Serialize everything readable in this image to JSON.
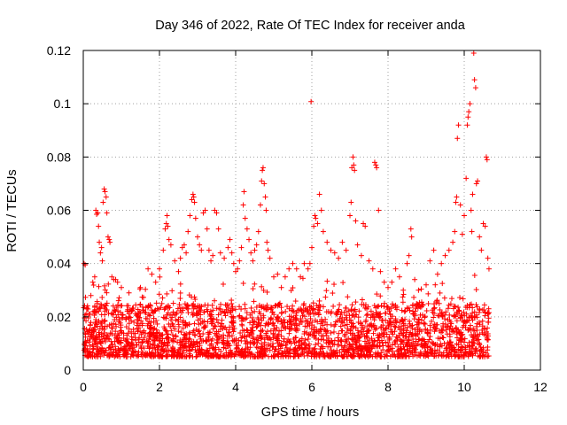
{
  "chart_data": {
    "type": "scatter",
    "title": "Day 346 of 2022, Rate Of TEC Index for receiver anda",
    "xlabel": "GPS time / hours",
    "ylabel": "ROTI / TECUs",
    "xlim": [
      0,
      12
    ],
    "ylim": [
      0,
      0.12
    ],
    "xticks": [
      "0",
      "2",
      "4",
      "6",
      "8",
      "10",
      "12"
    ],
    "yticks": [
      "0",
      "0.02",
      "0.04",
      "0.06",
      "0.08",
      "0.1",
      "0.12"
    ],
    "grid": true,
    "marker": "+",
    "marker_color": "#ff0000",
    "x_data_extent": [
      0,
      10.65
    ],
    "baseline_range": [
      0.005,
      0.025
    ],
    "points": [
      [
        0.02,
        0.04
      ],
      [
        0.05,
        0.0395
      ],
      [
        0.1,
        0.023
      ],
      [
        0.15,
        0.021
      ],
      [
        0.2,
        0.028
      ],
      [
        0.25,
        0.033
      ],
      [
        0.3,
        0.035
      ],
      [
        0.33,
        0.06
      ],
      [
        0.35,
        0.0585
      ],
      [
        0.38,
        0.059
      ],
      [
        0.4,
        0.054
      ],
      [
        0.42,
        0.048
      ],
      [
        0.45,
        0.044
      ],
      [
        0.48,
        0.046
      ],
      [
        0.5,
        0.041
      ],
      [
        0.52,
        0.063
      ],
      [
        0.55,
        0.068
      ],
      [
        0.57,
        0.067
      ],
      [
        0.6,
        0.065
      ],
      [
        0.62,
        0.059
      ],
      [
        0.65,
        0.05
      ],
      [
        0.68,
        0.049
      ],
      [
        0.7,
        0.048
      ],
      [
        0.75,
        0.035
      ],
      [
        0.8,
        0.034
      ],
      [
        0.85,
        0.034
      ],
      [
        0.9,
        0.033
      ],
      [
        1.0,
        0.031
      ],
      [
        1.2,
        0.029
      ],
      [
        1.5,
        0.031
      ],
      [
        1.7,
        0.038
      ],
      [
        1.8,
        0.036
      ],
      [
        1.9,
        0.033
      ],
      [
        2.0,
        0.038
      ],
      [
        2.1,
        0.045
      ],
      [
        2.15,
        0.053
      ],
      [
        2.18,
        0.055
      ],
      [
        2.2,
        0.058
      ],
      [
        2.22,
        0.054
      ],
      [
        2.25,
        0.049
      ],
      [
        2.3,
        0.047
      ],
      [
        2.4,
        0.041
      ],
      [
        2.5,
        0.037
      ],
      [
        2.55,
        0.042
      ],
      [
        2.6,
        0.046
      ],
      [
        2.65,
        0.047
      ],
      [
        2.7,
        0.044
      ],
      [
        2.75,
        0.052
      ],
      [
        2.8,
        0.058
      ],
      [
        2.85,
        0.064
      ],
      [
        2.88,
        0.066
      ],
      [
        2.9,
        0.065
      ],
      [
        2.92,
        0.063
      ],
      [
        2.95,
        0.057
      ],
      [
        3.0,
        0.05
      ],
      [
        3.05,
        0.047
      ],
      [
        3.1,
        0.045
      ],
      [
        3.15,
        0.059
      ],
      [
        3.2,
        0.06
      ],
      [
        3.25,
        0.053
      ],
      [
        3.3,
        0.045
      ],
      [
        3.35,
        0.041
      ],
      [
        3.4,
        0.043
      ],
      [
        3.45,
        0.06
      ],
      [
        3.5,
        0.059
      ],
      [
        3.55,
        0.053
      ],
      [
        3.6,
        0.044
      ],
      [
        3.7,
        0.042
      ],
      [
        3.8,
        0.046
      ],
      [
        3.85,
        0.049
      ],
      [
        3.9,
        0.044
      ],
      [
        3.95,
        0.04
      ],
      [
        4.0,
        0.037
      ],
      [
        4.05,
        0.038
      ],
      [
        4.1,
        0.041
      ],
      [
        4.15,
        0.046
      ],
      [
        4.2,
        0.062
      ],
      [
        4.22,
        0.067
      ],
      [
        4.25,
        0.057
      ],
      [
        4.3,
        0.053
      ],
      [
        4.35,
        0.049
      ],
      [
        4.4,
        0.044
      ],
      [
        4.45,
        0.041
      ],
      [
        4.5,
        0.045
      ],
      [
        4.55,
        0.047
      ],
      [
        4.6,
        0.052
      ],
      [
        4.65,
        0.062
      ],
      [
        4.68,
        0.071
      ],
      [
        4.7,
        0.075
      ],
      [
        4.72,
        0.076
      ],
      [
        4.75,
        0.07
      ],
      [
        4.78,
        0.065
      ],
      [
        4.8,
        0.06
      ],
      [
        4.82,
        0.048
      ],
      [
        4.85,
        0.045
      ],
      [
        4.9,
        0.042
      ],
      [
        5.0,
        0.035
      ],
      [
        5.1,
        0.036
      ],
      [
        5.2,
        0.031
      ],
      [
        5.3,
        0.035
      ],
      [
        5.4,
        0.038
      ],
      [
        5.5,
        0.04
      ],
      [
        5.6,
        0.038
      ],
      [
        5.7,
        0.035
      ],
      [
        5.8,
        0.04
      ],
      [
        5.9,
        0.038
      ],
      [
        5.95,
        0.04
      ],
      [
        5.98,
        0.1008
      ],
      [
        6.0,
        0.046
      ],
      [
        6.05,
        0.054
      ],
      [
        6.08,
        0.058
      ],
      [
        6.1,
        0.057
      ],
      [
        6.15,
        0.055
      ],
      [
        6.2,
        0.066
      ],
      [
        6.25,
        0.06
      ],
      [
        6.3,
        0.052
      ],
      [
        6.4,
        0.048
      ],
      [
        6.5,
        0.045
      ],
      [
        6.6,
        0.044
      ],
      [
        6.7,
        0.042
      ],
      [
        6.8,
        0.048
      ],
      [
        6.9,
        0.045
      ],
      [
        7.0,
        0.058
      ],
      [
        7.03,
        0.063
      ],
      [
        7.05,
        0.076
      ],
      [
        7.08,
        0.08
      ],
      [
        7.1,
        0.077
      ],
      [
        7.12,
        0.075
      ],
      [
        7.15,
        0.056
      ],
      [
        7.2,
        0.047
      ],
      [
        7.3,
        0.043
      ],
      [
        7.35,
        0.055
      ],
      [
        7.4,
        0.054
      ],
      [
        7.5,
        0.041
      ],
      [
        7.6,
        0.038
      ],
      [
        7.65,
        0.078
      ],
      [
        7.68,
        0.077
      ],
      [
        7.7,
        0.076
      ],
      [
        7.75,
        0.06
      ],
      [
        7.8,
        0.037
      ],
      [
        7.9,
        0.033
      ],
      [
        8.0,
        0.031
      ],
      [
        8.1,
        0.033
      ],
      [
        8.2,
        0.038
      ],
      [
        8.3,
        0.035
      ],
      [
        8.4,
        0.03
      ],
      [
        8.5,
        0.04
      ],
      [
        8.55,
        0.043
      ],
      [
        8.6,
        0.053
      ],
      [
        8.62,
        0.05
      ],
      [
        8.7,
        0.034
      ],
      [
        8.8,
        0.03
      ],
      [
        9.0,
        0.032
      ],
      [
        9.1,
        0.041
      ],
      [
        9.2,
        0.045
      ],
      [
        9.3,
        0.036
      ],
      [
        9.4,
        0.04
      ],
      [
        9.5,
        0.043
      ],
      [
        9.6,
        0.045
      ],
      [
        9.7,
        0.048
      ],
      [
        9.75,
        0.052
      ],
      [
        9.78,
        0.063
      ],
      [
        9.8,
        0.065
      ],
      [
        9.82,
        0.087
      ],
      [
        9.85,
        0.092
      ],
      [
        9.9,
        0.062
      ],
      [
        9.95,
        0.051
      ],
      [
        10.0,
        0.058
      ],
      [
        10.05,
        0.072
      ],
      [
        10.08,
        0.092
      ],
      [
        10.1,
        0.095
      ],
      [
        10.12,
        0.097
      ],
      [
        10.15,
        0.1
      ],
      [
        10.18,
        0.06
      ],
      [
        10.2,
        0.052
      ],
      [
        10.22,
        0.066
      ],
      [
        10.25,
        0.119
      ],
      [
        10.27,
        0.109
      ],
      [
        10.3,
        0.106
      ],
      [
        10.32,
        0.07
      ],
      [
        10.35,
        0.071
      ],
      [
        10.4,
        0.05
      ],
      [
        10.45,
        0.045
      ],
      [
        10.5,
        0.055
      ],
      [
        10.55,
        0.054
      ],
      [
        10.58,
        0.08
      ],
      [
        10.6,
        0.079
      ],
      [
        10.62,
        0.042
      ],
      [
        10.65,
        0.038
      ]
    ]
  }
}
